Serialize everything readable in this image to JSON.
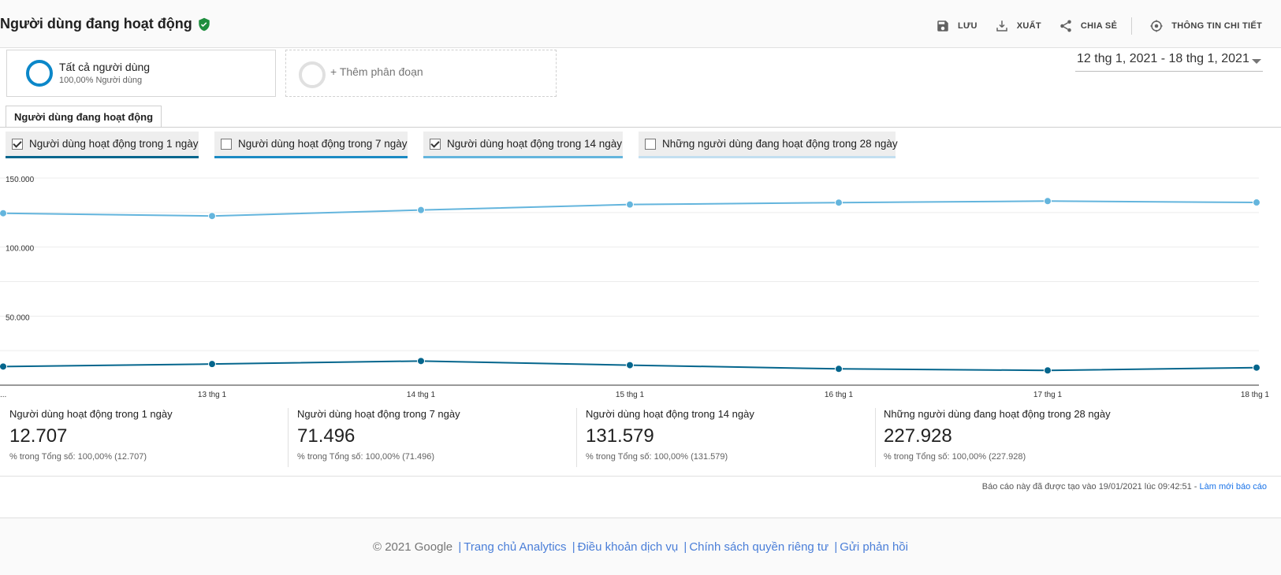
{
  "header": {
    "title": "Người dùng đang hoạt động",
    "actions": [
      {
        "label": "LƯU",
        "icon": "save-icon"
      },
      {
        "label": "XUẤT",
        "icon": "export-icon"
      },
      {
        "label": "CHIA SẺ",
        "icon": "share-icon"
      },
      {
        "label": "THÔNG TIN CHI TIẾT",
        "icon": "insights-icon"
      }
    ]
  },
  "segments": {
    "active": {
      "name": "Tất cả người dùng",
      "sub": "100,00% Người dùng"
    },
    "add_label": "+ Thêm phân đoạn"
  },
  "date_range": "12 thg 1, 2021 - 18 thg 1, 2021",
  "tab": "Người dùng đang hoạt động",
  "metrics": [
    {
      "label": "Người dùng hoạt động trong 1 ngày",
      "checked": true,
      "color": "#05668d"
    },
    {
      "label": "Người dùng hoạt động trong 7 ngày",
      "checked": false,
      "color": "#1b8ac3"
    },
    {
      "label": "Người dùng hoạt động trong 14 ngày",
      "checked": true,
      "color": "#64b5dd"
    },
    {
      "label": "Những người dùng đang hoạt động trong 28 ngày",
      "checked": false,
      "color": "#c3dff0"
    }
  ],
  "chart_data": {
    "type": "line",
    "x": [
      "...",
      "13 thg 1",
      "14 thg 1",
      "15 thg 1",
      "16 thg 1",
      "17 thg 1",
      "18 thg 1"
    ],
    "y_ticks": [
      "150.000",
      "100.000",
      "50.000"
    ],
    "ylim": [
      0,
      150000
    ],
    "grid": true,
    "series": [
      {
        "name": "Người dùng hoạt động trong 14 ngày",
        "color": "#64b5dd",
        "values": [
          124500,
          122500,
          126800,
          130800,
          132200,
          133300,
          132300
        ]
      },
      {
        "name": "Người dùng hoạt động trong 1 ngày",
        "color": "#05668d",
        "values": [
          13500,
          15300,
          17500,
          14500,
          11800,
          10700,
          12700
        ]
      }
    ]
  },
  "scorecards": [
    {
      "label": "Người dùng hoạt động trong 1 ngày",
      "value": "12.707",
      "sub": "% trong Tổng số: 100,00% (12.707)"
    },
    {
      "label": "Người dùng hoạt động trong 7 ngày",
      "value": "71.496",
      "sub": "% trong Tổng số: 100,00% (71.496)"
    },
    {
      "label": "Người dùng hoạt động trong 14 ngày",
      "value": "131.579",
      "sub": "% trong Tổng số: 100,00% (131.579)"
    },
    {
      "label": "Những người dùng đang hoạt động trong 28 ngày",
      "value": "227.928",
      "sub": "% trong Tổng số: 100,00% (227.928)"
    }
  ],
  "generated": {
    "text": "Báo cáo này đã được tạo vào 19/01/2021 lúc 09:42:51 - ",
    "link": "Làm mới báo cáo"
  },
  "footer": {
    "copyright": "© 2021 Google",
    "links": [
      "Trang chủ Analytics",
      "Điều khoản dịch vụ",
      "Chính sách quyền riêng tư",
      "Gửi phản hồi"
    ]
  }
}
